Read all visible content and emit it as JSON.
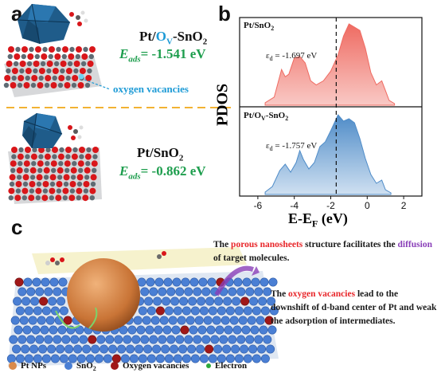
{
  "panels": {
    "a": {
      "label": "a",
      "top_formula": {
        "pre": "Pt/",
        "ov": "O",
        "sub": "V",
        "post": "-SnO",
        "sub2": "2"
      },
      "top_eads": {
        "E": "E",
        "sub": "ads",
        "value": "= -1.541 eV"
      },
      "ov_label": "oxygen vacancies",
      "bottom_formula": {
        "pre": "Pt/SnO",
        "sub": "2"
      },
      "bottom_eads": {
        "E": "E",
        "sub": "ads",
        "value": "= -0.862 eV"
      }
    },
    "b": {
      "label": "b",
      "top_title": {
        "pre": "Pt/SnO",
        "sub": "2"
      },
      "top_ed": {
        "e": "ε",
        "sub": "d",
        "value": " = -1.697 eV"
      },
      "bottom_title": {
        "pre": "Pt/O",
        "sub": "V",
        "post": "-SnO",
        "sub2": "2"
      },
      "bottom_ed": {
        "e": "ε",
        "sub": "d",
        "value": " = -1.757 eV"
      },
      "ylabel": "PDOS",
      "xlabel": {
        "pre": "E-E",
        "sub": "F",
        "post": " (eV)"
      }
    },
    "c": {
      "label": "c",
      "caption1": {
        "p1": "The ",
        "h1": "porous nanosheets",
        "p2": " structure facilitates the ",
        "h2": "diffusion",
        "p3": " of target molecules."
      },
      "caption2": {
        "p1": "The ",
        "h1": "oxygen vacancies",
        "p2": " lead to the downshift of d-band center of Pt and weak the adsorption of intermediates."
      },
      "legend": [
        {
          "label": "Pt NPs",
          "color": "#d98a4b"
        },
        {
          "label": "SnO",
          "sub": "2",
          "color": "#4a7fd4"
        },
        {
          "label": "Oxygen vacancies",
          "color": "#a01818"
        },
        {
          "label": "Electron",
          "color": "#2eaa3c"
        }
      ]
    }
  },
  "colors": {
    "red_fill": "#f07a72",
    "blue_fill": "#5f9ad0",
    "highlight_red": "#e8262a",
    "highlight_purple": "#8a3fb8",
    "green": "#1e9e4e",
    "cyan": "#1e9bd6"
  },
  "chart_data": {
    "type": "area",
    "xlabel": "E-E_F (eV)",
    "ylabel": "PDOS",
    "xlim": [
      -7,
      3
    ],
    "xticks": [
      "-6",
      "-4",
      "-2",
      "0",
      "2"
    ],
    "fermi_marker": -1.7,
    "series": [
      {
        "name": "Pt/SnO2",
        "x": [
          -5.6,
          -5.1,
          -4.7,
          -4.5,
          -4.3,
          -4.0,
          -3.7,
          -3.4,
          -3.1,
          -2.8,
          -2.4,
          -2.0,
          -1.6,
          -1.3,
          -1.0,
          -0.7,
          -0.4,
          -0.1,
          0.2,
          0.5,
          0.8,
          1.0,
          1.2,
          1.5
        ],
        "values": [
          0.03,
          0.1,
          0.44,
          0.35,
          0.38,
          0.58,
          0.6,
          0.52,
          0.3,
          0.25,
          0.3,
          0.42,
          0.62,
          0.85,
          1.0,
          0.96,
          0.92,
          0.7,
          0.4,
          0.25,
          0.3,
          0.18,
          0.06,
          0.02
        ],
        "d_band_center": -1.697
      },
      {
        "name": "Pt/OV-SnO2",
        "x": [
          -5.6,
          -5.2,
          -4.8,
          -4.5,
          -4.2,
          -3.9,
          -3.7,
          -3.5,
          -3.2,
          -2.9,
          -2.6,
          -2.3,
          -2.0,
          -1.6,
          -1.3,
          -1.0,
          -0.7,
          -0.4,
          -0.1,
          0.2,
          0.5,
          0.8,
          1.0,
          1.3
        ],
        "values": [
          0.03,
          0.1,
          0.3,
          0.38,
          0.28,
          0.4,
          0.55,
          0.44,
          0.32,
          0.4,
          0.6,
          0.66,
          0.8,
          1.0,
          0.92,
          0.95,
          0.9,
          0.7,
          0.45,
          0.25,
          0.14,
          0.18,
          0.06,
          0.02
        ],
        "d_band_center": -1.757
      }
    ]
  }
}
